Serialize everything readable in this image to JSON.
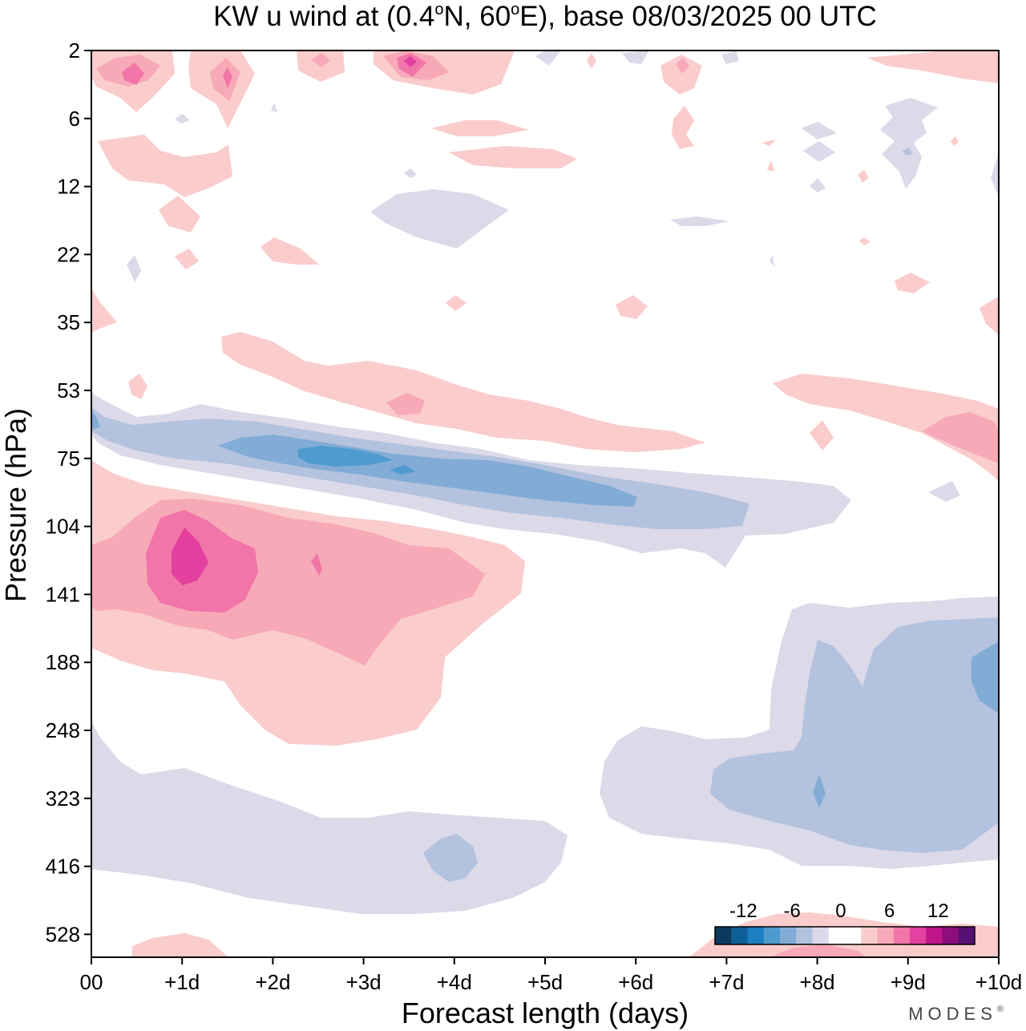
{
  "chart_data": {
    "type": "heatmap",
    "title_parts": [
      "KW u wind at (0.4",
      "o",
      "N, 60",
      "o",
      "E),  base 08/03/2025  00 UTC"
    ],
    "xlabel": "Forecast length (days)",
    "ylabel": "Pressure (hPa)",
    "x_ticks": [
      "00",
      "+1d",
      "+2d",
      "+3d",
      "+4d",
      "+5d",
      "+6d",
      "+7d",
      "+8d",
      "+9d",
      "+10d"
    ],
    "x_range_days": [
      0,
      10
    ],
    "y_ticks": [
      "2",
      "6",
      "12",
      "22",
      "35",
      "53",
      "75",
      "104",
      "141",
      "188",
      "248",
      "323",
      "416",
      "528"
    ],
    "colorbar": {
      "labels": [
        "-12",
        "-6",
        "0",
        "6",
        "12"
      ],
      "colors": [
        "#0c3a5e",
        "#0d5f95",
        "#1b7fc0",
        "#4f9bcf",
        "#82acd6",
        "#b3c2de",
        "#dcd9e9",
        "#ffffff",
        "#ffffff",
        "#fbcccc",
        "#f7a9b7",
        "#f175a8",
        "#e3409f",
        "#c0158a",
        "#8c0d7c",
        "#561173"
      ]
    },
    "brand": "MODES",
    "brand_mark": "®",
    "features": [
      {
        "name": "stratosphere-positive-strip",
        "sign": "positive",
        "peak_ms": 9,
        "x_days": [
          0,
          10
        ],
        "pressure_hPa": [
          2,
          4
        ]
      },
      {
        "name": "upper-positive-patch",
        "sign": "positive",
        "peak_ms": 3,
        "x_days": [
          0.2,
          5.3
        ],
        "pressure_hPa": [
          6,
          22
        ]
      },
      {
        "name": "upper-negative-patch",
        "sign": "negative",
        "peak_ms": -3,
        "x_days": [
          3.1,
          4.7
        ],
        "pressure_hPa": [
          12,
          22
        ]
      },
      {
        "name": "mid-positive-band",
        "sign": "positive",
        "peak_ms": 6,
        "x_days": [
          1.5,
          6.8
        ],
        "pressure_hPa": [
          35,
          75
        ]
      },
      {
        "name": "easterly-jet-negative-band",
        "sign": "negative",
        "peak_ms": -9,
        "x_days": [
          0,
          8.3
        ],
        "pressure_hPa": [
          53,
          130
        ]
      },
      {
        "name": "lower-positive-core",
        "sign": "positive",
        "peak_ms": 12,
        "x_days": [
          0,
          4.8
        ],
        "pressure_hPa": [
          75,
          280
        ]
      },
      {
        "name": "right-positive-band",
        "sign": "positive",
        "peak_ms": 6,
        "x_days": [
          7.5,
          10
        ],
        "pressure_hPa": [
          45,
          100
        ]
      },
      {
        "name": "tropospheric-negative-right",
        "sign": "negative",
        "peak_ms": -6,
        "x_days": [
          5.6,
          10
        ],
        "pressure_hPa": [
          141,
          430
        ]
      },
      {
        "name": "tropospheric-negative-left",
        "sign": "negative",
        "peak_ms": -6,
        "x_days": [
          0,
          5.2
        ],
        "pressure_hPa": [
          248,
          480
        ]
      },
      {
        "name": "bottom-positive-patch",
        "sign": "positive",
        "peak_ms": 3,
        "x_days": [
          0.4,
          10
        ],
        "pressure_hPa": [
          500,
          560
        ]
      }
    ]
  }
}
